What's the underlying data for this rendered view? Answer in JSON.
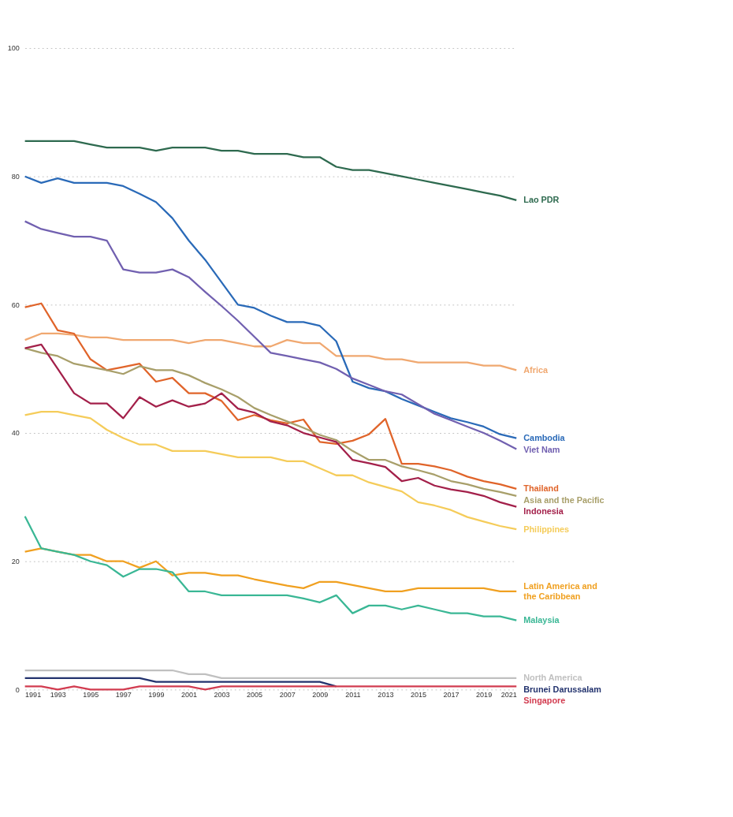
{
  "chart_data": {
    "type": "line",
    "x": [
      1991,
      1992,
      1993,
      1994,
      1995,
      1996,
      1997,
      1998,
      1999,
      2000,
      2001,
      2002,
      2003,
      2004,
      2005,
      2006,
      2007,
      2008,
      2009,
      2010,
      2011,
      2012,
      2013,
      2014,
      2015,
      2016,
      2017,
      2018,
      2019,
      2020,
      2021
    ],
    "xlim": [
      1991,
      2021
    ],
    "xticks": [
      1991,
      1993,
      1995,
      1997,
      1999,
      2001,
      2003,
      2005,
      2007,
      2009,
      2011,
      2013,
      2015,
      2017,
      2019,
      2021
    ],
    "ylim": [
      0,
      100
    ],
    "yticks": [
      0,
      20,
      40,
      60,
      80,
      100
    ],
    "grid": "y",
    "series": [
      {
        "name": "Lao PDR",
        "color": "#2e6a4f",
        "values": [
          85.5,
          85.5,
          85.5,
          85.5,
          85,
          84.5,
          84.5,
          84.5,
          84,
          84.5,
          84.5,
          84.5,
          84,
          84,
          83.5,
          83.5,
          83.5,
          83,
          83,
          81.5,
          81,
          81,
          80.5,
          80,
          79.5,
          79,
          78.5,
          78,
          77.5,
          77,
          76.3
        ]
      },
      {
        "name": "Africa",
        "color": "#f0a870",
        "values": [
          54.5,
          55.5,
          55.5,
          55.3,
          54.9,
          54.9,
          54.5,
          54.5,
          54.5,
          54.5,
          54,
          54.5,
          54.5,
          54,
          53.5,
          53.5,
          54.5,
          54,
          54,
          52,
          52,
          52,
          51.5,
          51.5,
          51,
          51,
          51,
          51,
          50.5,
          50.5,
          49.8
        ]
      },
      {
        "name": "Cambodia",
        "color": "#2a6ab8",
        "values": [
          80,
          79,
          79.7,
          79,
          79,
          79,
          78.5,
          77.3,
          76,
          73.5,
          70,
          67,
          63.5,
          60,
          59.5,
          58.3,
          57.3,
          57.3,
          56.7,
          54.3,
          48,
          47,
          46.5,
          45.3,
          44.3,
          43.3,
          42.3,
          41.7,
          41,
          39.8,
          39.2
        ]
      },
      {
        "name": "Viet Nam",
        "color": "#7160b0",
        "values": [
          73,
          71.8,
          71.2,
          70.6,
          70.6,
          70,
          65.5,
          65,
          65,
          65.5,
          64.3,
          62,
          59.8,
          57.5,
          55,
          52.5,
          52,
          51.5,
          51,
          50,
          48.5,
          47.5,
          46.5,
          46,
          44.5,
          43,
          42,
          41,
          40,
          38.8,
          37.5
        ]
      },
      {
        "name": "Thailand",
        "color": "#e0642a",
        "values": [
          59.6,
          60.2,
          56,
          55.5,
          51.5,
          49.8,
          50.3,
          50.8,
          48,
          48.6,
          46.2,
          46.2,
          45,
          42,
          42.8,
          42,
          41.5,
          42.1,
          38.6,
          38.3,
          38.8,
          39.8,
          42.2,
          35.2,
          35.2,
          34.8,
          34.2,
          33.2,
          32.5,
          32,
          31.3
        ]
      },
      {
        "name": "Asia and the Pacific",
        "color": "#a89f6a",
        "values": [
          53.2,
          52.5,
          52,
          50.8,
          50.3,
          49.8,
          49.2,
          50.4,
          49.8,
          49.8,
          49,
          47.8,
          46.8,
          45.6,
          43.9,
          42.8,
          41.8,
          40.8,
          39.7,
          38.9,
          37.2,
          35.8,
          35.8,
          34.8,
          34.2,
          33.5,
          32.5,
          32,
          31.3,
          30.8,
          30.2
        ]
      },
      {
        "name": "Indonesia",
        "color": "#a3204a",
        "values": [
          53.2,
          53.8,
          50,
          46.2,
          44.6,
          44.6,
          42.3,
          45.6,
          44.1,
          45.1,
          44.1,
          44.6,
          46.2,
          43.8,
          43.2,
          41.8,
          41.2,
          40,
          39.3,
          38.6,
          35.8,
          35.3,
          34.7,
          32.5,
          33,
          31.8,
          31.2,
          30.8,
          30.2,
          29.2,
          28.5
        ]
      },
      {
        "name": "Philippines",
        "color": "#f5cc5a",
        "values": [
          42.8,
          43.3,
          43.3,
          42.8,
          42.3,
          40.5,
          39.2,
          38.2,
          38.2,
          37.2,
          37.2,
          37.2,
          36.7,
          36.2,
          36.2,
          36.2,
          35.6,
          35.6,
          34.5,
          33.4,
          33.4,
          32.3,
          31.6,
          30.9,
          29.2,
          28.7,
          28,
          26.9,
          26.2,
          25.5,
          25
        ]
      },
      {
        "name": "Latin America and\nthe Caribbean",
        "color": "#f0a020",
        "values": [
          21.5,
          22,
          21.5,
          21,
          21,
          20,
          20,
          19,
          20,
          17.8,
          18.2,
          18.2,
          17.8,
          17.8,
          17.2,
          16.7,
          16.2,
          15.8,
          16.8,
          16.8,
          16.3,
          15.8,
          15.3,
          15.3,
          15.8,
          15.8,
          15.8,
          15.8,
          15.8,
          15.3,
          15.3
        ]
      },
      {
        "name": "Malaysia",
        "color": "#3ab795",
        "values": [
          27,
          22,
          21.5,
          21,
          20,
          19.4,
          17.6,
          18.8,
          18.8,
          18.3,
          15.3,
          15.3,
          14.7,
          14.7,
          14.7,
          14.7,
          14.7,
          14.2,
          13.6,
          14.7,
          11.9,
          13.1,
          13.1,
          12.5,
          13.1,
          12.5,
          11.9,
          11.9,
          11.4,
          11.4,
          10.8
        ]
      },
      {
        "name": "North America",
        "color": "#c0c0c0",
        "values": [
          3,
          3,
          3,
          3,
          3,
          3,
          3,
          3,
          3,
          3,
          2.4,
          2.4,
          1.8,
          1.8,
          1.8,
          1.8,
          1.8,
          1.8,
          1.8,
          1.8,
          1.8,
          1.8,
          1.8,
          1.8,
          1.8,
          1.8,
          1.8,
          1.8,
          1.8,
          1.8,
          1.8
        ]
      },
      {
        "name": "Brunei Darussalam",
        "color": "#23336e",
        "values": [
          1.8,
          1.8,
          1.8,
          1.8,
          1.8,
          1.8,
          1.8,
          1.8,
          1.2,
          1.2,
          1.2,
          1.2,
          1.2,
          1.2,
          1.2,
          1.2,
          1.2,
          1.2,
          1.2,
          0.5,
          null,
          null,
          null,
          null,
          null,
          null,
          null,
          null,
          null,
          null,
          null
        ]
      },
      {
        "name": "Singapore",
        "color": "#d23c50",
        "values": [
          0.5,
          0.5,
          0,
          0.5,
          0,
          0,
          0,
          0.5,
          0.5,
          0.5,
          0.5,
          0,
          0.5,
          0.5,
          0.5,
          0.5,
          0.5,
          0.5,
          0.5,
          0.5,
          0.5,
          0.5,
          0.5,
          0.5,
          0.5,
          0.5,
          0.5,
          0.5,
          0.5,
          0.5,
          0.5
        ]
      }
    ]
  }
}
